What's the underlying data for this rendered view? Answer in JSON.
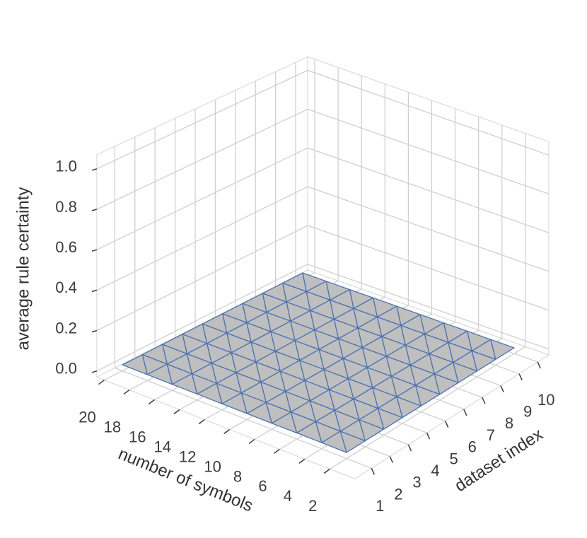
{
  "chart_data": {
    "type": "surface3d",
    "xlabel": "dataset index",
    "ylabel": "number of symbols",
    "zlabel": "average rule certainty",
    "x": [
      1,
      2,
      3,
      4,
      5,
      6,
      7,
      8,
      9,
      10
    ],
    "y": [
      2,
      4,
      6,
      8,
      10,
      12,
      14,
      16,
      18,
      20
    ],
    "z": [
      [
        0,
        0,
        0,
        0,
        0,
        0,
        0,
        0,
        0,
        0
      ],
      [
        0,
        0,
        0,
        0,
        0,
        0,
        0,
        0,
        0,
        0
      ],
      [
        0,
        0,
        0,
        0,
        0,
        0,
        0,
        0,
        0,
        0
      ],
      [
        0,
        0,
        0,
        0,
        0,
        0,
        0,
        0,
        0,
        0
      ],
      [
        0,
        0,
        0,
        0,
        0,
        0,
        0,
        0,
        0,
        0
      ],
      [
        0,
        0,
        0,
        0,
        0,
        0,
        0,
        0,
        0,
        0
      ],
      [
        0,
        0,
        0,
        0,
        0,
        0,
        0,
        0,
        0,
        0
      ],
      [
        0,
        0,
        0,
        0,
        0,
        0,
        0,
        0,
        0,
        0
      ],
      [
        0,
        0,
        0,
        0,
        0,
        0,
        0,
        0,
        0,
        0
      ],
      [
        0,
        0,
        0,
        0,
        0,
        0,
        0,
        0,
        0,
        0
      ]
    ],
    "xlim": [
      0.1,
      10.6
    ],
    "ylim": [
      0,
      20.6
    ],
    "zlim": [
      -0.03,
      1.07
    ],
    "xticks": [
      1,
      2,
      3,
      4,
      5,
      6,
      7,
      8,
      9,
      10
    ],
    "yticks": [
      2,
      4,
      6,
      8,
      10,
      12,
      14,
      16,
      18,
      20
    ],
    "zticks": [
      {
        "value": 0,
        "label": "0.0"
      },
      {
        "value": 0.2,
        "label": "0.2"
      },
      {
        "value": 0.4,
        "label": "0.4"
      },
      {
        "value": 0.6,
        "label": "0.6"
      },
      {
        "value": 0.8,
        "label": "0.8"
      },
      {
        "value": 1,
        "label": "1.0"
      }
    ],
    "facecolor": "#bfbfbf",
    "edgecolor": "#4c72b0",
    "grid": true
  }
}
